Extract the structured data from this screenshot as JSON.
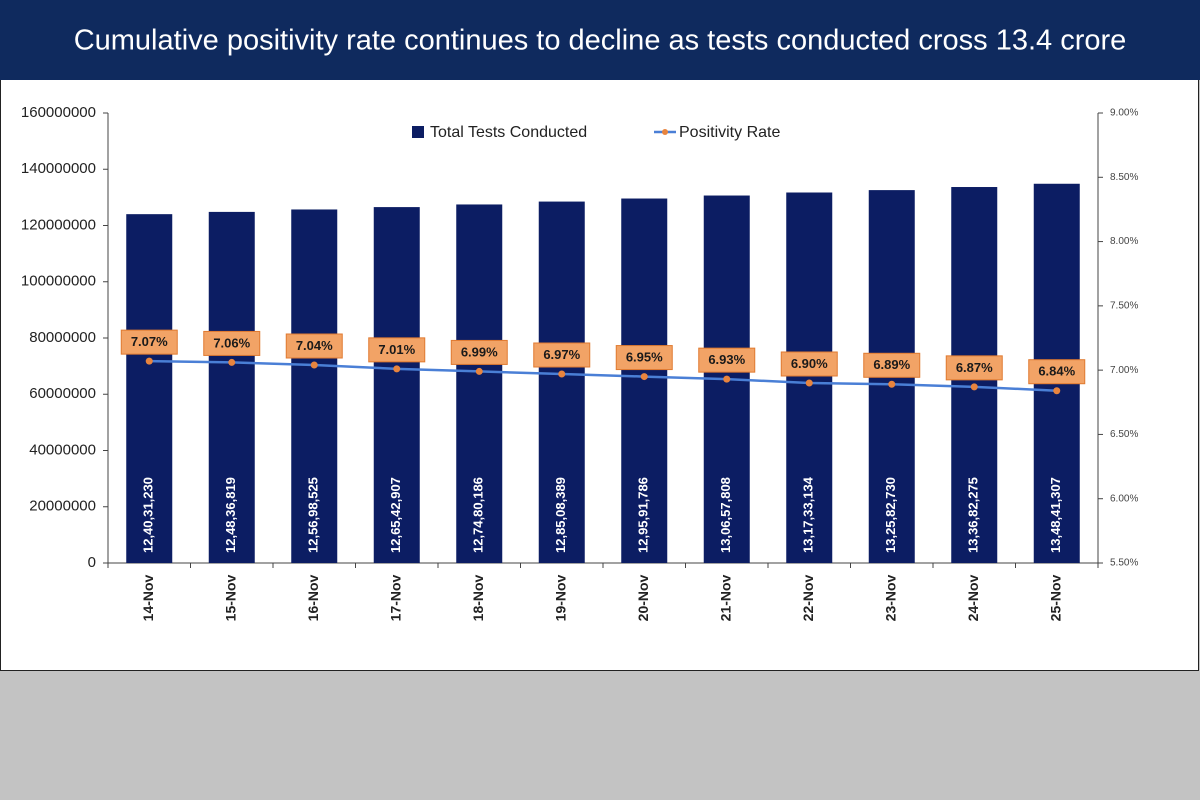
{
  "chart_data": {
    "type": "bar-line",
    "title": "Cumulative positivity rate continues to decline as tests conducted cross 13.4 crore",
    "categories": [
      "14-Nov",
      "15-Nov",
      "16-Nov",
      "17-Nov",
      "18-Nov",
      "19-Nov",
      "20-Nov",
      "21-Nov",
      "22-Nov",
      "23-Nov",
      "24-Nov",
      "25-Nov"
    ],
    "series": [
      {
        "name": "Total Tests Conducted",
        "type": "bar",
        "color": "#0c1d63",
        "values": [
          124031230,
          124836819,
          125698525,
          126542907,
          127480186,
          128508389,
          129591786,
          130657808,
          131733134,
          132582730,
          133682275,
          134841307
        ],
        "value_labels": [
          "12,40,31,230",
          "12,48,36,819",
          "12,56,98,525",
          "12,65,42,907",
          "12,74,80,186",
          "12,85,08,389",
          "12,95,91,786",
          "13,06,57,808",
          "13,17,33,134",
          "13,25,82,730",
          "13,36,82,275",
          "13,48,41,307"
        ]
      },
      {
        "name": "Positivity Rate",
        "type": "line",
        "axis": "y2",
        "color": "#4a7fd6",
        "marker_color": "#e8843e",
        "values": [
          7.07,
          7.06,
          7.04,
          7.01,
          6.99,
          6.97,
          6.95,
          6.93,
          6.9,
          6.89,
          6.87,
          6.84
        ],
        "value_labels": [
          "7.07%",
          "7.06%",
          "7.04%",
          "7.01%",
          "6.99%",
          "6.97%",
          "6.95%",
          "6.93%",
          "6.90%",
          "6.89%",
          "6.87%",
          "6.84%"
        ]
      }
    ],
    "ylim": [
      0,
      160000000
    ],
    "yticks": [
      0,
      20000000,
      40000000,
      60000000,
      80000000,
      100000000,
      120000000,
      140000000,
      160000000
    ],
    "y2lim": [
      5.5,
      9.0
    ],
    "y2ticks": [
      {
        "value": 5.5,
        "label": "5.50%"
      },
      {
        "value": 6.0,
        "label": "6.00%"
      },
      {
        "value": 6.5,
        "label": "6.50%"
      },
      {
        "value": 7.0,
        "label": "7.00%"
      },
      {
        "value": 7.5,
        "label": "7.50%"
      },
      {
        "value": 8.0,
        "label": "8.00%"
      },
      {
        "value": 8.5,
        "label": "8.50%"
      },
      {
        "value": 9.0,
        "label": "9.00%"
      }
    ],
    "legend": "top",
    "grid": false
  }
}
